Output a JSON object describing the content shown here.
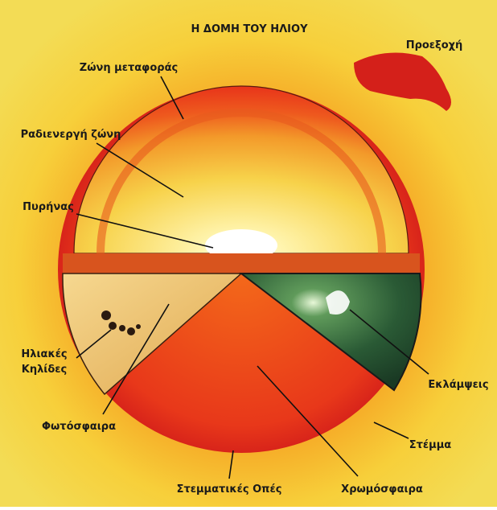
{
  "title": "Η ΔΟΜΗ ΤΟΥ ΗΛΙΟΥ",
  "labels": {
    "prominence": "Προεξοχή",
    "convection_zone": "Ζώνη μεταφοράς",
    "radiative_zone": "Ραδιενεργή ζώνη",
    "core": "Πυρήνας",
    "sunspots": [
      "Ηλιακές",
      "Κηλίδες"
    ],
    "photosphere": "Φωτόσφαιρα",
    "flares": "Εκλάμψεις",
    "corona": "Στέμμα",
    "coronal_holes": "Στεμματικές Οπές",
    "chromosphere": "Χρωμόσφαιρα"
  }
}
